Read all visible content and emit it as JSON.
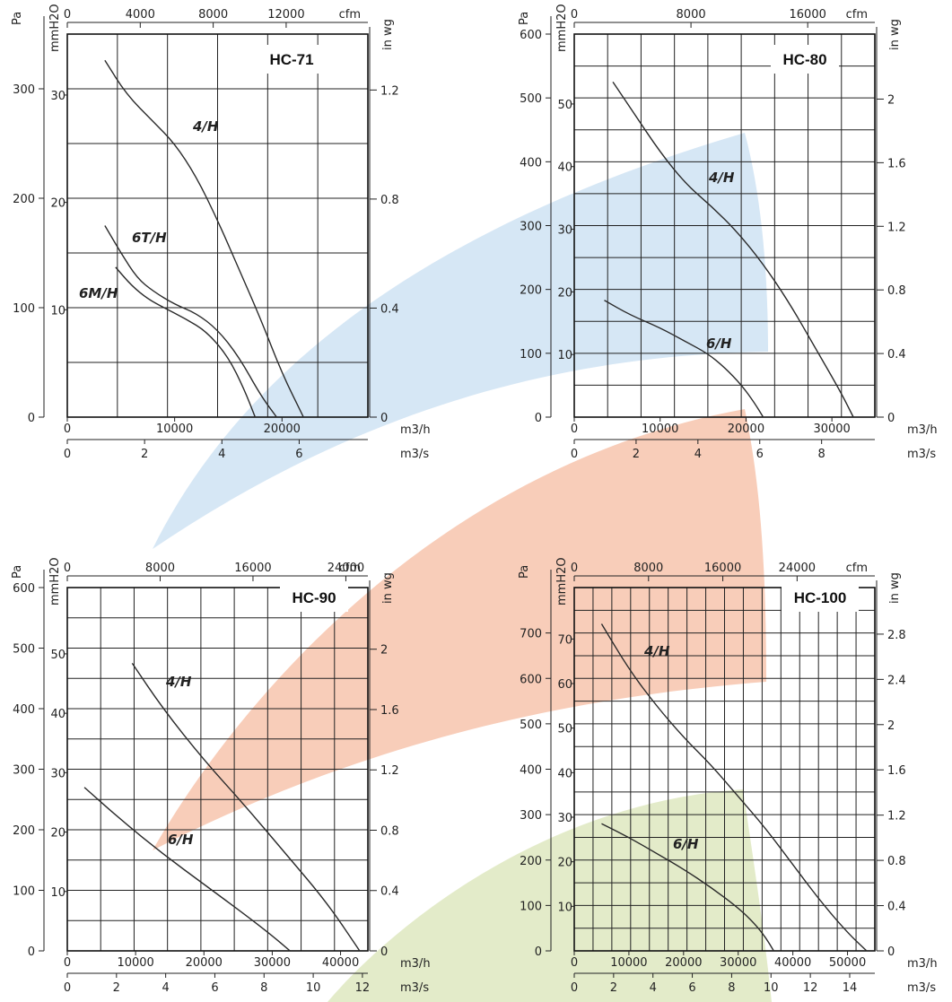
{
  "chart_data": [
    {
      "type": "line",
      "title": "HC-71",
      "x": {
        "m3h_ticks": [
          "0",
          "10000",
          "20000"
        ],
        "m3h_unit": "m3/h",
        "m3h_range": [
          0,
          28000
        ],
        "m3s_ticks": [
          "0",
          "2",
          "4",
          "6"
        ],
        "m3s_unit": "m3/s",
        "cfm_ticks": [
          "0",
          "4000",
          "8000",
          "12000"
        ],
        "cfm_unit": "cfm"
      },
      "y": {
        "pa_ticks": [
          "0",
          "100",
          "200",
          "300"
        ],
        "pa_unit": "Pa",
        "pa_range": [
          0,
          350
        ],
        "mm_ticks": [
          "10",
          "20",
          "30"
        ],
        "mm_unit": "mmH2O",
        "wg_ticks": [
          "0",
          "0.4",
          "0.8",
          "1.2"
        ],
        "wg_unit": "in wg"
      },
      "series": [
        {
          "name": "4/H",
          "x": [
            3500,
            5500,
            8000,
            10000,
            12000,
            14000,
            16000,
            18000,
            20000,
            22000
          ],
          "y": [
            326,
            295,
            270,
            250,
            220,
            180,
            135,
            90,
            40,
            0
          ]
        },
        {
          "name": "6T/H",
          "x": [
            3500,
            5000,
            6500,
            8000,
            10000,
            12000,
            14000,
            16000,
            18000,
            19500
          ],
          "y": [
            175,
            150,
            127,
            115,
            103,
            95,
            80,
            55,
            20,
            0
          ]
        },
        {
          "name": "6M/H",
          "x": [
            4500,
            6000,
            7500,
            9000,
            11000,
            13000,
            15000,
            16500,
            17500
          ],
          "y": [
            137,
            120,
            108,
            100,
            90,
            78,
            55,
            25,
            0
          ]
        }
      ]
    },
    {
      "type": "line",
      "title": "HC-80",
      "x": {
        "m3h_ticks": [
          "0",
          "10000",
          "20000",
          "30000"
        ],
        "m3h_unit": "m3/h",
        "m3h_range": [
          0,
          35000
        ],
        "m3s_ticks": [
          "0",
          "2",
          "4",
          "6",
          "8"
        ],
        "m3s_unit": "m3/s",
        "cfm_ticks": [
          "0",
          "8000",
          "16000"
        ],
        "cfm_unit": "cfm"
      },
      "y": {
        "pa_ticks": [
          "0",
          "100",
          "200",
          "300",
          "400",
          "500",
          "600"
        ],
        "pa_unit": "Pa",
        "pa_range": [
          0,
          600
        ],
        "mm_ticks": [
          "10",
          "20",
          "30",
          "40",
          "50"
        ],
        "mm_unit": "mmH2O",
        "wg_ticks": [
          "0",
          "0.4",
          "0.8",
          "1.2",
          "1.6",
          "2"
        ],
        "wg_unit": "in wg"
      },
      "series": [
        {
          "name": "4/H",
          "x": [
            4500,
            7000,
            10000,
            13000,
            16000,
            19000,
            22000,
            25000,
            28000,
            31000,
            32500
          ],
          "y": [
            525,
            475,
            415,
            365,
            330,
            290,
            240,
            180,
            110,
            40,
            0
          ]
        },
        {
          "name": "6/H",
          "x": [
            3500,
            6500,
            10000,
            13000,
            15500,
            17500,
            19500,
            21000,
            22000
          ],
          "y": [
            183,
            160,
            140,
            118,
            100,
            78,
            50,
            22,
            0
          ]
        }
      ]
    },
    {
      "type": "line",
      "title": "HC-90",
      "x": {
        "m3h_ticks": [
          "0",
          "10000",
          "20000",
          "30000",
          "40000"
        ],
        "m3h_unit": "m3/h",
        "m3h_range": [
          0,
          44000
        ],
        "m3s_ticks": [
          "0",
          "2",
          "4",
          "6",
          "8",
          "10",
          "12"
        ],
        "m3s_unit": "m3/s",
        "cfm_ticks": [
          "0",
          "8000",
          "16000",
          "24000"
        ],
        "cfm_unit": "cfm"
      },
      "y": {
        "pa_ticks": [
          "0",
          "100",
          "200",
          "300",
          "400",
          "500",
          "600"
        ],
        "pa_unit": "Pa",
        "pa_range": [
          0,
          600
        ],
        "mm_ticks": [
          "10",
          "20",
          "30",
          "40",
          "50"
        ],
        "mm_unit": "mmH2O",
        "wg_ticks": [
          "0",
          "0.4",
          "0.8",
          "1.2",
          "1.6",
          "2"
        ],
        "wg_unit": "in wg"
      },
      "series": [
        {
          "name": "4/H",
          "x": [
            9500,
            14000,
            20000,
            26000,
            32000,
            38000,
            42800
          ],
          "y": [
            475,
            400,
            315,
            240,
            160,
            80,
            0
          ]
        },
        {
          "name": "6/H",
          "x": [
            2500,
            8000,
            14000,
            20000,
            26000,
            30000,
            32600
          ],
          "y": [
            270,
            215,
            160,
            110,
            60,
            25,
            0
          ]
        }
      ]
    },
    {
      "type": "line",
      "title": "HC-100",
      "x": {
        "m3h_ticks": [
          "0",
          "10000",
          "20000",
          "30000",
          "40000",
          "50000"
        ],
        "m3h_unit": "m3/h",
        "m3h_range": [
          0,
          55000
        ],
        "m3s_ticks": [
          "0",
          "2",
          "4",
          "6",
          "8",
          "10",
          "12",
          "14"
        ],
        "m3s_unit": "m3/s",
        "cfm_ticks": [
          "0",
          "8000",
          "16000",
          "24000"
        ],
        "cfm_unit": "cfm"
      },
      "y": {
        "pa_ticks": [
          "0",
          "100",
          "200",
          "300",
          "400",
          "500",
          "600",
          "700"
        ],
        "pa_unit": "Pa",
        "pa_range": [
          0,
          800
        ],
        "mm_ticks": [
          "10",
          "20",
          "30",
          "40",
          "50",
          "60",
          "70"
        ],
        "mm_unit": "mmH2O",
        "wg_ticks": [
          "0",
          "0.4",
          "0.8",
          "1.2",
          "1.6",
          "2",
          "2.4",
          "2.8"
        ],
        "wg_unit": "in wg"
      },
      "series": [
        {
          "name": "4/H",
          "x": [
            5000,
            10000,
            15000,
            20000,
            25000,
            30000,
            35000,
            40000,
            45000,
            50000,
            53500
          ],
          "y": [
            720,
            620,
            540,
            470,
            410,
            340,
            270,
            190,
            110,
            40,
            0
          ]
        },
        {
          "name": "6/H",
          "x": [
            5000,
            10000,
            15000,
            20000,
            25000,
            30000,
            33000,
            35000,
            36500
          ],
          "y": [
            280,
            250,
            215,
            180,
            140,
            95,
            60,
            30,
            0
          ]
        }
      ]
    }
  ],
  "colors": {
    "blue_band": "#d6e7f5",
    "red_band": "#f8cdb9",
    "green_band": "#e3ebc9",
    "grid": "#222222",
    "curve": "#2a2a2a"
  }
}
